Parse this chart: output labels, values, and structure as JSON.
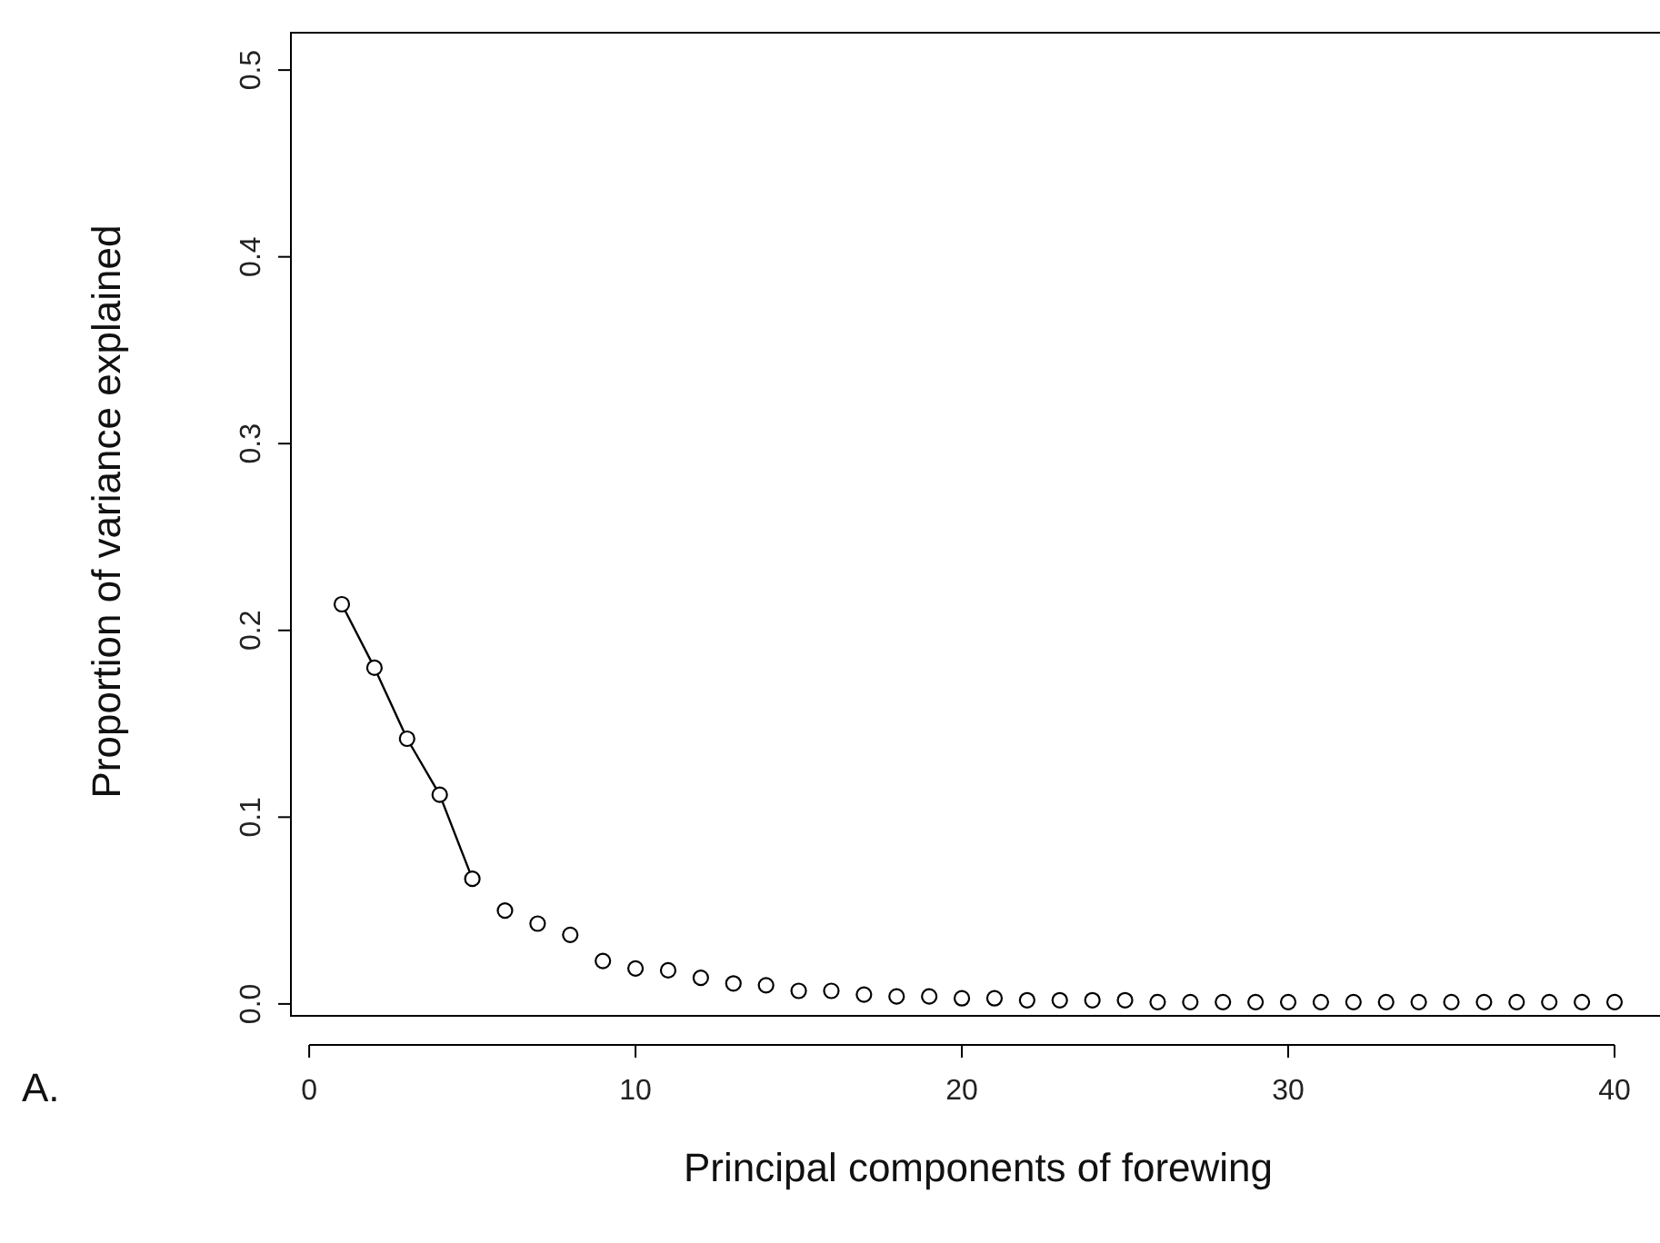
{
  "chart_data": {
    "type": "scatter",
    "xlabel": "Principal components of forewing",
    "ylabel": "Proportion of variance explained",
    "annotations": [
      "A."
    ],
    "xlim": [
      -0.56,
      41.56
    ],
    "ylim": [
      -0.02,
      0.52
    ],
    "xticks": [
      0,
      10,
      20,
      30,
      40
    ],
    "yticks": [
      {
        "value": 0,
        "label": "0.0"
      },
      0.1,
      0.2,
      0.3,
      0.4,
      0.5
    ],
    "grid": false,
    "marker": "circle",
    "series": [
      {
        "type": "line",
        "color": "#000000",
        "line_style": "solid",
        "x": [
          1,
          2,
          3,
          4,
          5
        ],
        "values": [
          0.214,
          0.18,
          0.142,
          0.112,
          0.067
        ]
      },
      {
        "color": "#000000",
        "x": [
          6,
          7,
          8,
          9,
          10,
          11,
          12,
          13,
          14,
          15,
          16,
          17,
          18,
          19,
          20,
          21,
          22,
          23,
          24,
          25,
          26,
          27,
          28,
          29,
          30,
          31,
          32,
          33,
          34,
          35,
          36,
          37,
          38,
          39,
          40
        ],
        "values": [
          0.05,
          0.043,
          0.037,
          0.023,
          0.019,
          0.018,
          0.014,
          0.011,
          0.01,
          0.007,
          0.007,
          0.005,
          0.004,
          0.004,
          0.003,
          0.003,
          0.002,
          0.002,
          0.002,
          0.002,
          0.001,
          0.001,
          0.001,
          0.001,
          0.001,
          0.001,
          0.001,
          0.001,
          0.001,
          0.001,
          0.001,
          0.001,
          0.001,
          0.001,
          0.001
        ]
      }
    ]
  }
}
